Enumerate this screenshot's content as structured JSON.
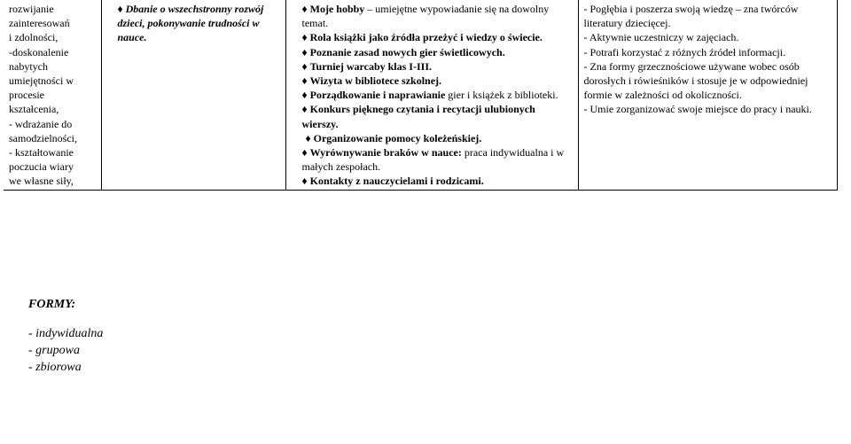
{
  "table": {
    "col1": {
      "lines": [
        "rozwijanie",
        "zainteresowań",
        "i zdolności,",
        "-doskonalenie",
        "nabytych",
        "umiejętności w",
        "procesie",
        "kształcenia,",
        "- wdrażanie do",
        "samodzielności,",
        "- kształtowanie",
        "poczucia wiary",
        "we własne siły,"
      ]
    },
    "col2": {
      "item": "Dbanie o wszechstronny rozwój dzieci, pokonywanie trudności w nauce."
    },
    "col3": {
      "items": [
        {
          "pre": "Moje hobby",
          "post": " – umiejętne wypowiadanie się na dowolny temat."
        },
        {
          "pre": "Rola książki jako źródła przeżyć i wiedzy o świecie.",
          "post": ""
        },
        {
          "pre": "Poznanie zasad nowych gier świetlicowych.",
          "post": ""
        },
        {
          "pre": "Turniej warcaby klas I-III.",
          "post": ""
        },
        {
          "pre": "Wizyta w bibliotece szkolnej.",
          "post": ""
        },
        {
          "pre": "Porządkowanie i naprawianie",
          "post": " gier i książek z biblioteki."
        },
        {
          "pre": "Konkurs pięknego czytania i recytacji ulubionych wierszy.",
          "post": ""
        },
        {
          "pre": "Organizowanie pomocy koleżeńskiej.",
          "post": "",
          "indent": true
        },
        {
          "pre": "Wyrównywanie braków w nauce:",
          "post": " praca indywidualna i w małych zespołach."
        },
        {
          "pre": "Kontakty z nauczycielami i rodzicami.",
          "post": ""
        }
      ]
    },
    "col4": {
      "lines": [
        "- Pogłębia i poszerza swoją wiedzę – zna twórców literatury dziecięcej.",
        "- Aktywnie uczestniczy w zajęciach.",
        "- Potrafi korzystać z różnych źródeł informacji.",
        "- Zna formy grzecznościowe używane wobec osób dorosłych i rówieśników i stosuje je w odpowiedniej formie w zależności od okoliczności.",
        "- Umie zorganizować swoje miejsce do pracy i nauki."
      ]
    }
  },
  "forms": {
    "title": "FORMY:",
    "items": [
      "- indywidualna",
      "- grupowa",
      "- zbiorowa"
    ]
  }
}
